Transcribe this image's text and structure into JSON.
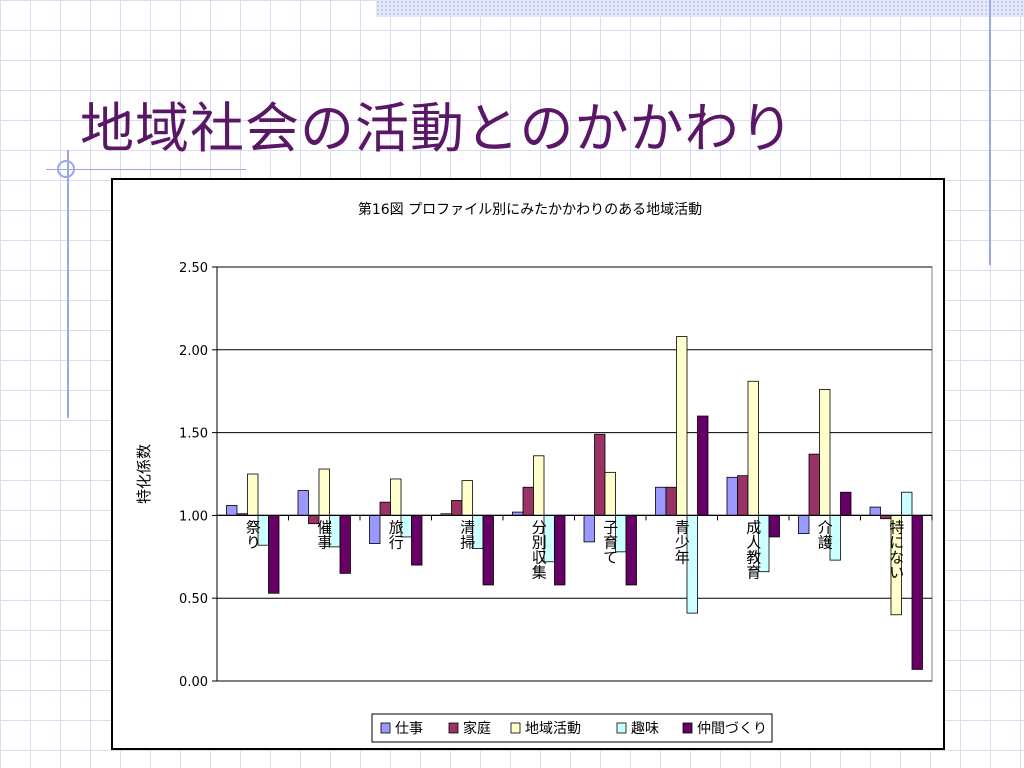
{
  "slide": {
    "title": "地域社会の活動とのかかわり"
  },
  "chart_data": {
    "type": "bar",
    "title": "第16図  プロファイル別にみたかかわりのある地域活動",
    "xlabel": "",
    "ylabel": "特化係数",
    "ylim": [
      0,
      2.5
    ],
    "yticks": [
      "0.00",
      "0.50",
      "1.00",
      "1.50",
      "2.00",
      "2.50"
    ],
    "baseline": 1.0,
    "grid": true,
    "legend_position": "bottom",
    "categories": [
      "祭り",
      "催事",
      "旅行",
      "清掃",
      "分別収集",
      "子育て",
      "青少年",
      "成人教育",
      "介護",
      "特にない"
    ],
    "series": [
      {
        "name": "仕事",
        "color": "#9999ff",
        "values": [
          1.06,
          1.15,
          0.83,
          1.01,
          1.02,
          0.84,
          1.17,
          1.23,
          0.89,
          1.05
        ]
      },
      {
        "name": "家庭",
        "color": "#993366",
        "values": [
          1.01,
          0.95,
          1.08,
          1.09,
          1.17,
          1.49,
          1.17,
          1.24,
          1.37,
          0.98
        ]
      },
      {
        "name": "地域活動",
        "color": "#ffffcc",
        "values": [
          1.25,
          1.28,
          1.22,
          1.21,
          1.36,
          1.26,
          2.08,
          1.81,
          1.76,
          0.4
        ]
      },
      {
        "name": "趣味",
        "color": "#ccffff",
        "values": [
          0.82,
          0.81,
          0.87,
          0.8,
          0.72,
          0.78,
          0.41,
          0.66,
          0.73,
          1.14
        ]
      },
      {
        "name": "仲間づくり",
        "color": "#660066",
        "values": [
          0.53,
          0.65,
          0.7,
          0.58,
          0.58,
          0.58,
          1.6,
          0.87,
          1.14,
          0.07
        ]
      }
    ]
  }
}
